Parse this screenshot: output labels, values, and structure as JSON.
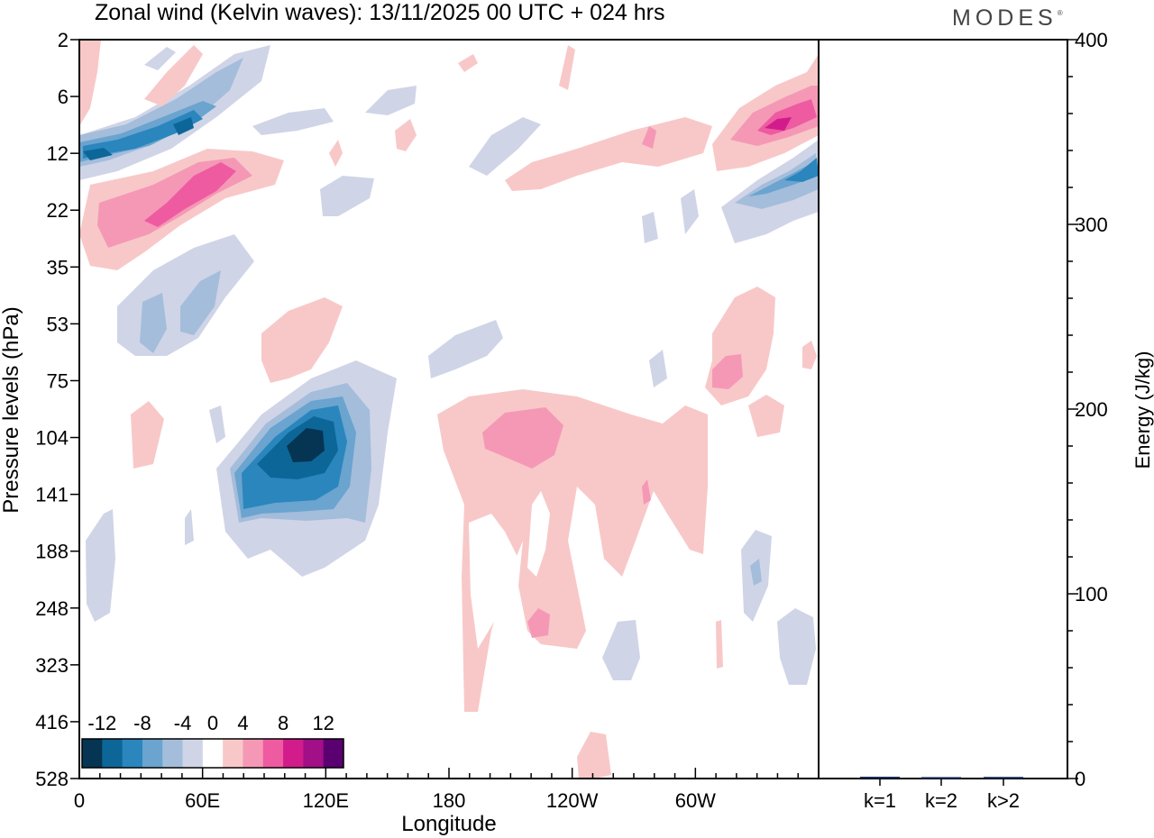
{
  "header": {
    "title": "Zonal wind (Kelvin waves):  13/11/2025  00 UTC  + 024 hrs",
    "brand": "MODES"
  },
  "chart_data": [
    {
      "type": "heatmap",
      "title": "Zonal wind (Kelvin waves)",
      "date": "13/11/2025",
      "time": "00 UTC",
      "forecast": "+ 024 hrs",
      "xlabel": "Longitude",
      "ylabel": "Pressure levels (hPa)",
      "x_tick_labels": [
        "0",
        "60E",
        "120E",
        "180",
        "120W",
        "60W"
      ],
      "x_tick_values_deg_east": [
        0,
        60,
        120,
        180,
        240,
        300
      ],
      "xlim_deg_east": [
        0,
        360
      ],
      "y_tick_labels": [
        "2",
        "6",
        "12",
        "22",
        "35",
        "53",
        "75",
        "104",
        "141",
        "188",
        "248",
        "323",
        "416",
        "528"
      ],
      "colorbar": {
        "labels": [
          "-12",
          "-8",
          "-4",
          "0",
          "4",
          "8",
          "12"
        ],
        "levels": [
          -14,
          -12,
          -10,
          -8,
          -6,
          -4,
          -2,
          2,
          4,
          6,
          8,
          10,
          12,
          14
        ],
        "colors": [
          "#053552",
          "#0d6698",
          "#2a86bd",
          "#6aa4cf",
          "#a4bddb",
          "#d0d4e7",
          "#ffffff",
          "#f8c8c8",
          "#f598b6",
          "#ee5ba1",
          "#d21c8b",
          "#a20f86",
          "#5a0070"
        ]
      },
      "features": [
        {
          "label": "neg-upper-band-west",
          "lon": [
            0,
            50
          ],
          "p": [
            8,
            14
          ],
          "u": -10
        },
        {
          "label": "neg-diag-band",
          "lon": [
            30,
            80
          ],
          "p": [
            4,
            12
          ],
          "u": -6
        },
        {
          "label": "pos-upper-band-west",
          "lon": [
            10,
            100
          ],
          "p": [
            14,
            28
          ],
          "u": 8
        },
        {
          "label": "neg-band-35hPa",
          "lon": [
            20,
            70
          ],
          "p": [
            35,
            65
          ],
          "u": -5
        },
        {
          "label": "pos-53hPa",
          "lon": [
            90,
            125
          ],
          "p": [
            45,
            85
          ],
          "u": 3
        },
        {
          "label": "neg-core-upper-trop",
          "lon": [
            75,
            140
          ],
          "p": [
            80,
            170
          ],
          "u": -12
        },
        {
          "label": "pos-large-region",
          "lon": [
            175,
            290
          ],
          "p": [
            90,
            400
          ],
          "u": 3
        },
        {
          "label": "pos-core-104hPa",
          "lon": [
            195,
            235
          ],
          "p": [
            95,
            120
          ],
          "u": 5
        },
        {
          "label": "pos-upper-east",
          "lon": [
            310,
            360
          ],
          "p": [
            7,
            16
          ],
          "u": 8
        },
        {
          "label": "neg-upper-east",
          "lon": [
            320,
            360
          ],
          "p": [
            12,
            24
          ],
          "u": -10
        },
        {
          "label": "pos-east-75hPa",
          "lon": [
            305,
            340
          ],
          "p": [
            50,
            130
          ],
          "u": 4
        }
      ]
    },
    {
      "type": "bar",
      "categories": [
        "k=1",
        "k=2",
        "k>2"
      ],
      "values": [
        0.5,
        0.3,
        0.4
      ],
      "ylabel": "Energy (J/kg)",
      "y_tick_labels": [
        "0",
        "100",
        "200",
        "300",
        "400"
      ],
      "ylim": [
        0,
        400
      ]
    }
  ]
}
